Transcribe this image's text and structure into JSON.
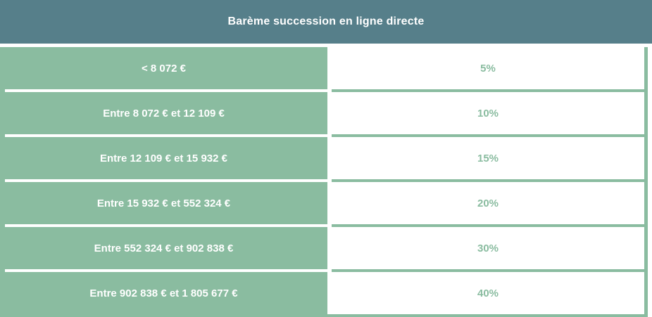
{
  "colors": {
    "header_bg": "#567f8a",
    "bracket_bg": "#8abca0",
    "rate_text": "#8abca0",
    "header_text": "#ffffff",
    "bracket_text": "#ffffff",
    "rate_bg": "#ffffff"
  },
  "chart_data": {
    "type": "table",
    "title": "Barème succession en ligne directe",
    "rows": [
      {
        "bracket": "< 8 072 €",
        "rate": "5%"
      },
      {
        "bracket": "Entre 8 072 € et 12 109 €",
        "rate": "10%"
      },
      {
        "bracket": "Entre 12 109 € et 15 932 €",
        "rate": "15%"
      },
      {
        "bracket": "Entre 15 932 € et 552 324 €",
        "rate": "20%"
      },
      {
        "bracket": "Entre 552 324 € et 902 838 €",
        "rate": "30%"
      },
      {
        "bracket": "Entre 902 838 € et 1 805 677 €",
        "rate": "40%"
      }
    ]
  }
}
